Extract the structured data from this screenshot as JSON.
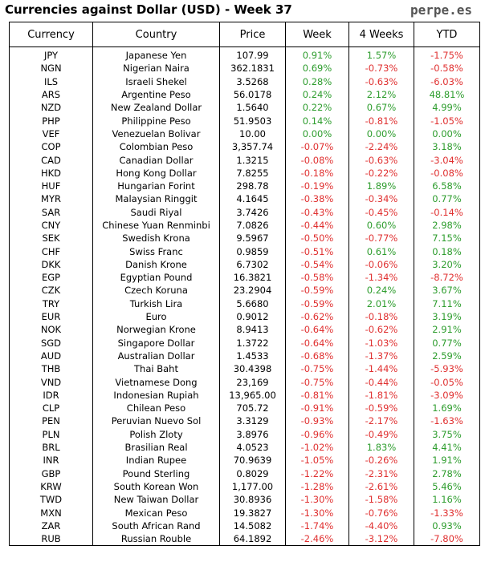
{
  "header": {
    "title": "Currencies against Dollar (USD) - Week 37",
    "brand": "perpe.es"
  },
  "chart_data": {
    "type": "table",
    "title": "Currencies against Dollar (USD) - Week 37",
    "columns": [
      "Currency",
      "Country",
      "Price",
      "Week",
      "4 Weeks",
      "YTD"
    ],
    "rows": [
      [
        "JPY",
        "Japanese Yen",
        "107.99",
        "0.91%",
        "1.57%",
        "-1.75%"
      ],
      [
        "NGN",
        "Nigerian Naira",
        "362.1831",
        "0.69%",
        "-0.73%",
        "-0.58%"
      ],
      [
        "ILS",
        "Israeli Shekel",
        "3.5268",
        "0.28%",
        "-0.63%",
        "-6.03%"
      ],
      [
        "ARS",
        "Argentine Peso",
        "56.0178",
        "0.24%",
        "2.12%",
        "48.81%"
      ],
      [
        "NZD",
        "New Zealand Dollar",
        "1.5640",
        "0.22%",
        "0.67%",
        "4.99%"
      ],
      [
        "PHP",
        "Philippine Peso",
        "51.9503",
        "0.14%",
        "-0.81%",
        "-1.05%"
      ],
      [
        "VEF",
        "Venezuelan Bolivar",
        "10.00",
        "0.00%",
        "0.00%",
        "0.00%"
      ],
      [
        "COP",
        "Colombian Peso",
        "3,357.74",
        "-0.07%",
        "-2.24%",
        "3.18%"
      ],
      [
        "CAD",
        "Canadian Dollar",
        "1.3215",
        "-0.08%",
        "-0.63%",
        "-3.04%"
      ],
      [
        "HKD",
        "Hong Kong Dollar",
        "7.8255",
        "-0.18%",
        "-0.22%",
        "-0.08%"
      ],
      [
        "HUF",
        "Hungarian Forint",
        "298.78",
        "-0.19%",
        "1.89%",
        "6.58%"
      ],
      [
        "MYR",
        "Malaysian Ringgit",
        "4.1645",
        "-0.38%",
        "-0.34%",
        "0.77%"
      ],
      [
        "SAR",
        "Saudi Riyal",
        "3.7426",
        "-0.43%",
        "-0.45%",
        "-0.14%"
      ],
      [
        "CNY",
        "Chinese Yuan Renminbi",
        "7.0826",
        "-0.44%",
        "0.60%",
        "2.98%"
      ],
      [
        "SEK",
        "Swedish Krona",
        "9.5967",
        "-0.50%",
        "-0.77%",
        "7.15%"
      ],
      [
        "CHF",
        "Swiss Franc",
        "0.9859",
        "-0.51%",
        "0.61%",
        "0.18%"
      ],
      [
        "DKK",
        "Danish Krone",
        "6.7302",
        "-0.54%",
        "-0.06%",
        "3.20%"
      ],
      [
        "EGP",
        "Egyptian Pound",
        "16.3821",
        "-0.58%",
        "-1.34%",
        "-8.72%"
      ],
      [
        "CZK",
        "Czech Koruna",
        "23.2904",
        "-0.59%",
        "0.24%",
        "3.67%"
      ],
      [
        "TRY",
        "Turkish Lira",
        "5.6680",
        "-0.59%",
        "2.01%",
        "7.11%"
      ],
      [
        "EUR",
        "Euro",
        "0.9012",
        "-0.62%",
        "-0.18%",
        "3.19%"
      ],
      [
        "NOK",
        "Norwegian Krone",
        "8.9413",
        "-0.64%",
        "-0.62%",
        "2.91%"
      ],
      [
        "SGD",
        "Singapore Dollar",
        "1.3722",
        "-0.64%",
        "-1.03%",
        "0.77%"
      ],
      [
        "AUD",
        "Australian Dollar",
        "1.4533",
        "-0.68%",
        "-1.37%",
        "2.59%"
      ],
      [
        "THB",
        "Thai Baht",
        "30.4398",
        "-0.75%",
        "-1.44%",
        "-5.93%"
      ],
      [
        "VND",
        "Vietnamese Dong",
        "23,169",
        "-0.75%",
        "-0.44%",
        "-0.05%"
      ],
      [
        "IDR",
        "Indonesian Rupiah",
        "13,965.00",
        "-0.81%",
        "-1.81%",
        "-3.09%"
      ],
      [
        "CLP",
        "Chilean Peso",
        "705.72",
        "-0.91%",
        "-0.59%",
        "1.69%"
      ],
      [
        "PEN",
        "Peruvian Nuevo Sol",
        "3.3129",
        "-0.93%",
        "-2.17%",
        "-1.63%"
      ],
      [
        "PLN",
        "Polish Zloty",
        "3.8976",
        "-0.96%",
        "-0.49%",
        "3.75%"
      ],
      [
        "BRL",
        "Brasilian Real",
        "4.0523",
        "-1.02%",
        "1.83%",
        "4.41%"
      ],
      [
        "INR",
        "Indian Rupee",
        "70.9639",
        "-1.05%",
        "-0.26%",
        "1.91%"
      ],
      [
        "GBP",
        "Pound Sterling",
        "0.8029",
        "-1.22%",
        "-2.31%",
        "2.78%"
      ],
      [
        "KRW",
        "South Korean Won",
        "1,177.00",
        "-1.28%",
        "-2.61%",
        "5.46%"
      ],
      [
        "TWD",
        "New Taiwan Dollar",
        "30.8936",
        "-1.30%",
        "-1.58%",
        "1.16%"
      ],
      [
        "MXN",
        "Mexican Peso",
        "19.3827",
        "-1.30%",
        "-0.76%",
        "-1.33%"
      ],
      [
        "ZAR",
        "South African Rand",
        "14.5082",
        "-1.74%",
        "-4.40%",
        "0.93%"
      ],
      [
        "RUB",
        "Russian Rouble",
        "64.1892",
        "-2.46%",
        "-3.12%",
        "-7.80%"
      ]
    ]
  },
  "colors": {
    "positive": "#2e9d2e",
    "negative": "#e03030"
  }
}
